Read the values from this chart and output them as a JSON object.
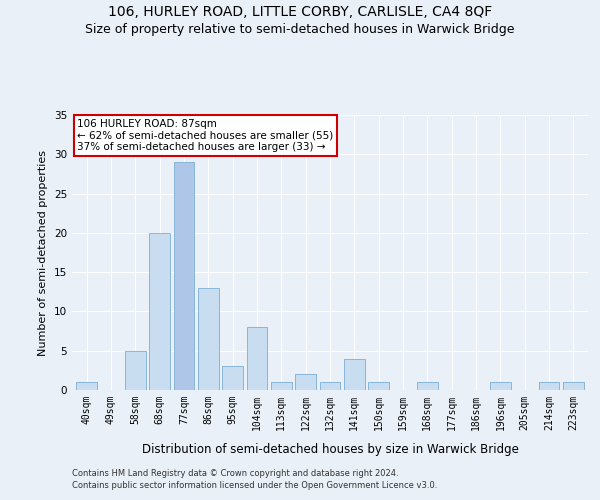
{
  "title": "106, HURLEY ROAD, LITTLE CORBY, CARLISLE, CA4 8QF",
  "subtitle": "Size of property relative to semi-detached houses in Warwick Bridge",
  "xlabel": "Distribution of semi-detached houses by size in Warwick Bridge",
  "ylabel": "Number of semi-detached properties",
  "categories": [
    "40sqm",
    "49sqm",
    "58sqm",
    "68sqm",
    "77sqm",
    "86sqm",
    "95sqm",
    "104sqm",
    "113sqm",
    "122sqm",
    "132sqm",
    "141sqm",
    "150sqm",
    "159sqm",
    "168sqm",
    "177sqm",
    "186sqm",
    "196sqm",
    "205sqm",
    "214sqm",
    "223sqm"
  ],
  "values": [
    1,
    0,
    5,
    20,
    29,
    13,
    3,
    8,
    1,
    2,
    1,
    4,
    1,
    0,
    1,
    0,
    0,
    1,
    0,
    1,
    1
  ],
  "highlight_index": 4,
  "highlight_color": "#aec6e8",
  "normal_color": "#c9ddf0",
  "bar_edge_color": "#7bafd4",
  "annotation_text": "106 HURLEY ROAD: 87sqm\n← 62% of semi-detached houses are smaller (55)\n37% of semi-detached houses are larger (33) →",
  "annotation_box_color": "#ffffff",
  "annotation_box_edge": "#cc0000",
  "ylim": [
    0,
    35
  ],
  "yticks": [
    0,
    5,
    10,
    15,
    20,
    25,
    30,
    35
  ],
  "footer1": "Contains HM Land Registry data © Crown copyright and database right 2024.",
  "footer2": "Contains public sector information licensed under the Open Government Licence v3.0.",
  "bg_color": "#eaf0f8",
  "plot_bg_color": "#eaf0f8",
  "title_fontsize": 10,
  "subtitle_fontsize": 9,
  "tick_fontsize": 7,
  "ylabel_fontsize": 8,
  "xlabel_fontsize": 8.5,
  "footer_fontsize": 6,
  "annotation_fontsize": 7.5
}
